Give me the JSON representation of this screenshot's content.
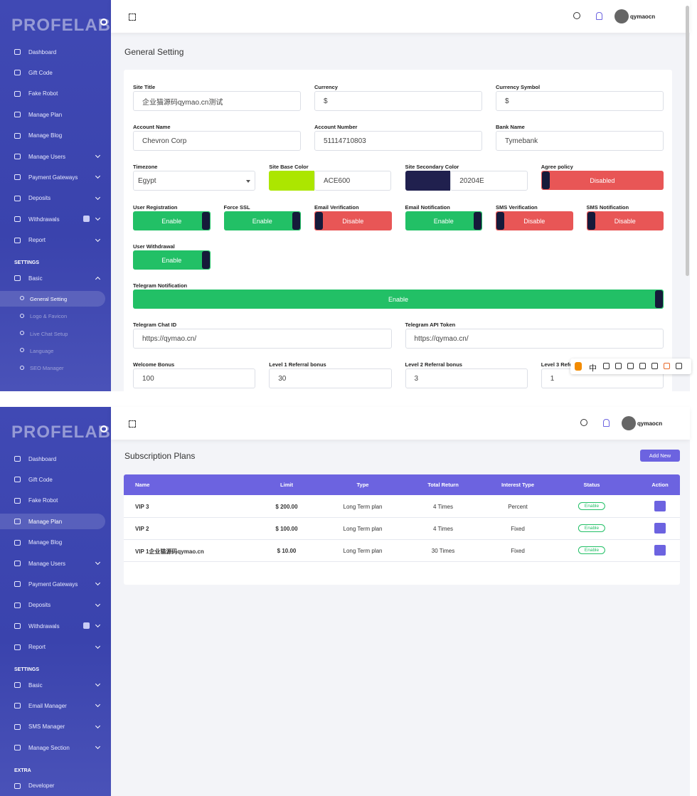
{
  "screens": [
    {
      "logo": "PROFELAB",
      "user": "qymaocn",
      "page_title": "General Setting",
      "menu": [
        {
          "label": "Dashboard"
        },
        {
          "label": "Gift Code"
        },
        {
          "label": "Fake Robot"
        },
        {
          "label": "Manage Plan"
        },
        {
          "label": "Manage Blog"
        },
        {
          "label": "Manage Users",
          "dropdown": true
        },
        {
          "label": "Payment Gateways",
          "dropdown": true
        },
        {
          "label": "Deposits",
          "dropdown": true
        },
        {
          "label": "Withdrawals",
          "dropdown": true,
          "badge": true
        },
        {
          "label": "Report",
          "dropdown": true
        },
        {
          "section": "SETTINGS"
        },
        {
          "label": "Basic",
          "dropdown": true,
          "open": true
        },
        {
          "label": "General Setting",
          "sub": true,
          "active": true
        },
        {
          "label": "Logo & Favicon",
          "sub": true
        },
        {
          "label": "Live Chat Setup",
          "sub": true
        },
        {
          "label": "Language",
          "sub": true
        },
        {
          "label": "SEO Manager",
          "sub": true
        }
      ],
      "form": [
        [
          {
            "label": "Site Title",
            "value": "企业猫源码qymao.cn测试"
          },
          {
            "label": "Currency",
            "value": "$"
          },
          {
            "label": "Currency Symbol",
            "value": "$"
          }
        ],
        [
          {
            "label": "Account Name",
            "value": "Chevron Corp"
          },
          {
            "label": "Account Number",
            "value": "51114710803"
          },
          {
            "label": "Bank Name",
            "value": "Tymebank"
          }
        ],
        [
          {
            "label": "Timezone",
            "select": "Egypt"
          },
          {
            "label": "Site Base Color",
            "color": "ACE600"
          },
          {
            "label": "Site Secondary Color",
            "color": "20204E"
          },
          {
            "label": "Agree policy",
            "toggle": "Disabled",
            "on": false
          }
        ],
        [
          {
            "label": "User Registration",
            "toggle": "Enable",
            "on": true
          },
          {
            "label": "Force SSL",
            "toggle": "Enable",
            "on": true
          },
          {
            "label": "Email Verification",
            "toggle": "Disable",
            "on": false
          },
          {
            "label": "Email Notification",
            "toggle": "Enable",
            "on": true
          },
          {
            "label": "SMS Verification",
            "toggle": "Disable",
            "on": false
          },
          {
            "label": "SMS Notification",
            "toggle": "Disable",
            "on": false
          }
        ],
        [
          {
            "label": "User Withdrawal",
            "toggle": "Enable",
            "on": true
          }
        ],
        [
          {
            "label": "Telegram Notification",
            "toggle": "Enable",
            "on": true
          }
        ],
        [
          {
            "label": "Telegram Chat ID",
            "value": "https://qymao.cn/"
          },
          {
            "label": "Telegram API Token",
            "value": "https://qymao.cn/"
          }
        ],
        [
          {
            "label": "Welcome Bonus",
            "value": "100"
          },
          {
            "label": "Level 1 Referral bonus",
            "value": "30"
          },
          {
            "label": "Level 2 Referral bonus",
            "value": "3"
          },
          {
            "label": "Level 3 Referral bonus",
            "value": "1"
          }
        ]
      ],
      "ime": "中"
    },
    {
      "logo": "PROFELAB",
      "user": "qymaocn",
      "page_title": "Subscription Plans",
      "button": "Add New",
      "menu": [
        {
          "label": "Dashboard"
        },
        {
          "label": "Gift Code"
        },
        {
          "label": "Fake Robot"
        },
        {
          "label": "Manage Plan",
          "active": true
        },
        {
          "label": "Manage Blog"
        },
        {
          "label": "Manage Users",
          "dropdown": true
        },
        {
          "label": "Payment Gateways",
          "dropdown": true
        },
        {
          "label": "Deposits",
          "dropdown": true
        },
        {
          "label": "Withdrawals",
          "dropdown": true,
          "badge": true
        },
        {
          "label": "Report",
          "dropdown": true
        },
        {
          "section": "SETTINGS"
        },
        {
          "label": "Basic",
          "dropdown": true
        },
        {
          "label": "Email Manager",
          "dropdown": true
        },
        {
          "label": "SMS Manager",
          "dropdown": true
        },
        {
          "label": "Manage Section",
          "dropdown": true
        },
        {
          "section": "EXTRA"
        },
        {
          "label": "Developer"
        }
      ],
      "table": {
        "columns": [
          "Name",
          "Limit",
          "Type",
          "Total Return",
          "Interest Type",
          "Status",
          "Action"
        ],
        "rows": [
          [
            "VIP 3",
            "$ 200.00",
            "Long Term plan",
            "4 Times",
            "Percent",
            "Enable"
          ],
          [
            "VIP 2",
            "$ 100.00",
            "Long Term plan",
            "4 Times",
            "Fixed",
            "Enable"
          ],
          [
            "VIP 1企业猫源码qymao.cn",
            "$ 10.00",
            "Long Term plan",
            "30 Times",
            "Fixed",
            "Enable"
          ]
        ]
      }
    }
  ]
}
